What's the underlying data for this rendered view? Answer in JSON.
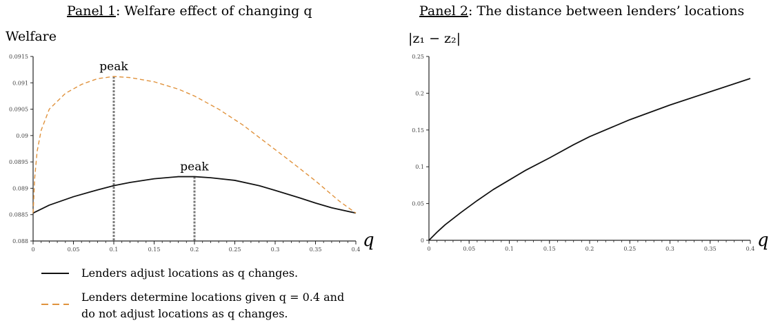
{
  "chart_data": [
    {
      "type": "line",
      "title_prefix": "Panel 1",
      "title_rest": ": Welfare effect of changing q",
      "ylabel": "Welfare",
      "xlabel": "q",
      "xlim": [
        0,
        0.4
      ],
      "ylim": [
        0.088,
        0.0915
      ],
      "xticks": [
        "0",
        "0.05",
        "0.1",
        "0.15",
        "0.2",
        "0.25",
        "0.3",
        "0.35",
        "0.4"
      ],
      "yticks": [
        "0.088",
        "0.0885",
        "0.089",
        "0.0895",
        "0.09",
        "0.0905",
        "0.091",
        "0.0915"
      ],
      "series": [
        {
          "style": "solid",
          "color": "#111111",
          "points": [
            [
              0,
              0.08853
            ],
            [
              0.02,
              0.08868
            ],
            [
              0.05,
              0.08884
            ],
            [
              0.08,
              0.08897
            ],
            [
              0.1,
              0.08905
            ],
            [
              0.12,
              0.08911
            ],
            [
              0.15,
              0.08918
            ],
            [
              0.18,
              0.08922
            ],
            [
              0.2,
              0.08922
            ],
            [
              0.22,
              0.0892
            ],
            [
              0.25,
              0.08915
            ],
            [
              0.28,
              0.08905
            ],
            [
              0.3,
              0.08896
            ],
            [
              0.33,
              0.08882
            ],
            [
              0.35,
              0.08872
            ],
            [
              0.37,
              0.08863
            ],
            [
              0.4,
              0.08853
            ]
          ]
        },
        {
          "style": "dashed",
          "color": "#E0923C",
          "points": [
            [
              0,
              0.08853
            ],
            [
              0.002,
              0.0892
            ],
            [
              0.005,
              0.0897
            ],
            [
              0.01,
              0.0901
            ],
            [
              0.02,
              0.0905
            ],
            [
              0.04,
              0.0908
            ],
            [
              0.06,
              0.09097
            ],
            [
              0.08,
              0.09108
            ],
            [
              0.1,
              0.09112
            ],
            [
              0.12,
              0.0911
            ],
            [
              0.15,
              0.09102
            ],
            [
              0.18,
              0.09088
            ],
            [
              0.2,
              0.09075
            ],
            [
              0.23,
              0.0905
            ],
            [
              0.26,
              0.0902
            ],
            [
              0.29,
              0.08985
            ],
            [
              0.32,
              0.0895
            ],
            [
              0.35,
              0.08914
            ],
            [
              0.38,
              0.08875
            ],
            [
              0.4,
              0.08853
            ]
          ]
        }
      ],
      "annotations": [
        {
          "text": "peak",
          "x": 0.1,
          "y": 0.09112
        },
        {
          "text": "peak",
          "x": 0.2,
          "y": 0.08922
        }
      ],
      "legend": [
        {
          "style": "solid",
          "color": "#111111",
          "text": "Lenders adjust locations as q changes."
        },
        {
          "style": "dashed",
          "color": "#E0923C",
          "text_line1": "Lenders determine locations given q = 0.4 and",
          "text_line2": "do not adjust locations as q changes."
        }
      ]
    },
    {
      "type": "line",
      "title_prefix": "Panel 2",
      "title_rest": ": The distance between lenders’ locations",
      "ylabel": "|z₁ − z₂|",
      "xlabel": "q",
      "xlim": [
        0,
        0.4
      ],
      "ylim": [
        0,
        0.25
      ],
      "xticks": [
        "0",
        "0.05",
        "0.1",
        "0.15",
        "0.2",
        "0.25",
        "0.3",
        "0.35",
        "0.4"
      ],
      "yticks": [
        "0",
        "0.05",
        "0.1",
        "0.15",
        "0.2",
        "0.25"
      ],
      "series": [
        {
          "style": "solid",
          "color": "#111111",
          "points": [
            [
              0,
              0.0
            ],
            [
              0.01,
              0.011
            ],
            [
              0.02,
              0.021
            ],
            [
              0.04,
              0.038
            ],
            [
              0.06,
              0.054
            ],
            [
              0.08,
              0.069
            ],
            [
              0.1,
              0.082
            ],
            [
              0.12,
              0.095
            ],
            [
              0.15,
              0.112
            ],
            [
              0.18,
              0.13
            ],
            [
              0.2,
              0.141
            ],
            [
              0.25,
              0.164
            ],
            [
              0.3,
              0.184
            ],
            [
              0.35,
              0.202
            ],
            [
              0.4,
              0.22
            ]
          ]
        }
      ]
    }
  ]
}
